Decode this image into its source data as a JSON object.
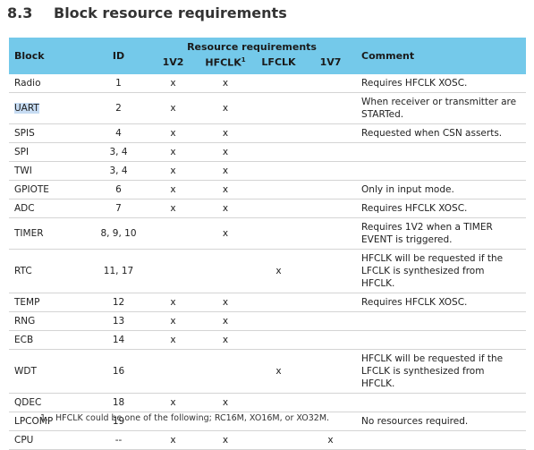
{
  "header": {
    "number": "8.3",
    "title": "Block resource requirements"
  },
  "table": {
    "columns": {
      "block": "Block",
      "id": "ID",
      "group": "Resource requirements",
      "v1v2": "1V2",
      "hfclk": "HFCLK",
      "hfclk_note": "1",
      "lfclk": "LFCLK",
      "v1v7": "1V7",
      "comment": "Comment"
    },
    "rows": [
      {
        "block": "Radio",
        "id": "1",
        "v1v2": "x",
        "hfclk": "x",
        "comment": "Requires HFCLK XOSC."
      },
      {
        "block": "UART",
        "id": "2",
        "v1v2": "x",
        "hfclk": "x",
        "comment": "When receiver or transmitter are STARTed."
      },
      {
        "block": "SPIS",
        "id": "4",
        "v1v2": "x",
        "hfclk": "x",
        "comment": "Requested when CSN asserts."
      },
      {
        "block": "SPI",
        "id": "3, 4",
        "v1v2": "x",
        "hfclk": "x"
      },
      {
        "block": "TWI",
        "id": "3, 4",
        "v1v2": "x",
        "hfclk": "x"
      },
      {
        "block": "GPIOTE",
        "id": "6",
        "v1v2": "x",
        "hfclk": "x",
        "comment": "Only in input mode."
      },
      {
        "block": "ADC",
        "id": "7",
        "v1v2": "x",
        "hfclk": "x",
        "comment": "Requires HFCLK XOSC."
      },
      {
        "block": "TIMER",
        "id": "8, 9, 10",
        "hfclk": "x",
        "comment": "Requires 1V2 when a TIMER EVENT is triggered."
      },
      {
        "block": "RTC",
        "id": "11, 17",
        "lfclk": "x",
        "comment": "HFCLK will be requested if the LFCLK is synthesized from HFCLK."
      },
      {
        "block": "TEMP",
        "id": "12",
        "v1v2": "x",
        "hfclk": "x",
        "comment": "Requires HFCLK XOSC."
      },
      {
        "block": "RNG",
        "id": "13",
        "v1v2": "x",
        "hfclk": "x"
      },
      {
        "block": "ECB",
        "id": "14",
        "v1v2": "x",
        "hfclk": "x"
      },
      {
        "block": "WDT",
        "id": "16",
        "lfclk": "x",
        "comment": "HFCLK will be requested if the LFCLK is synthesized from HFCLK."
      },
      {
        "block": "QDEC",
        "id": "18",
        "v1v2": "x",
        "hfclk": "x"
      },
      {
        "block": "LPCOMP",
        "id": "19",
        "comment": "No resources required."
      },
      {
        "block": "CPU",
        "id": "--",
        "v1v2": "x",
        "hfclk": "x",
        "v1v7": "x"
      }
    ]
  },
  "footnote": {
    "marker": "1.",
    "text": "HFCLK could be one of the following; RC16M, XO16M, or XO32M."
  }
}
